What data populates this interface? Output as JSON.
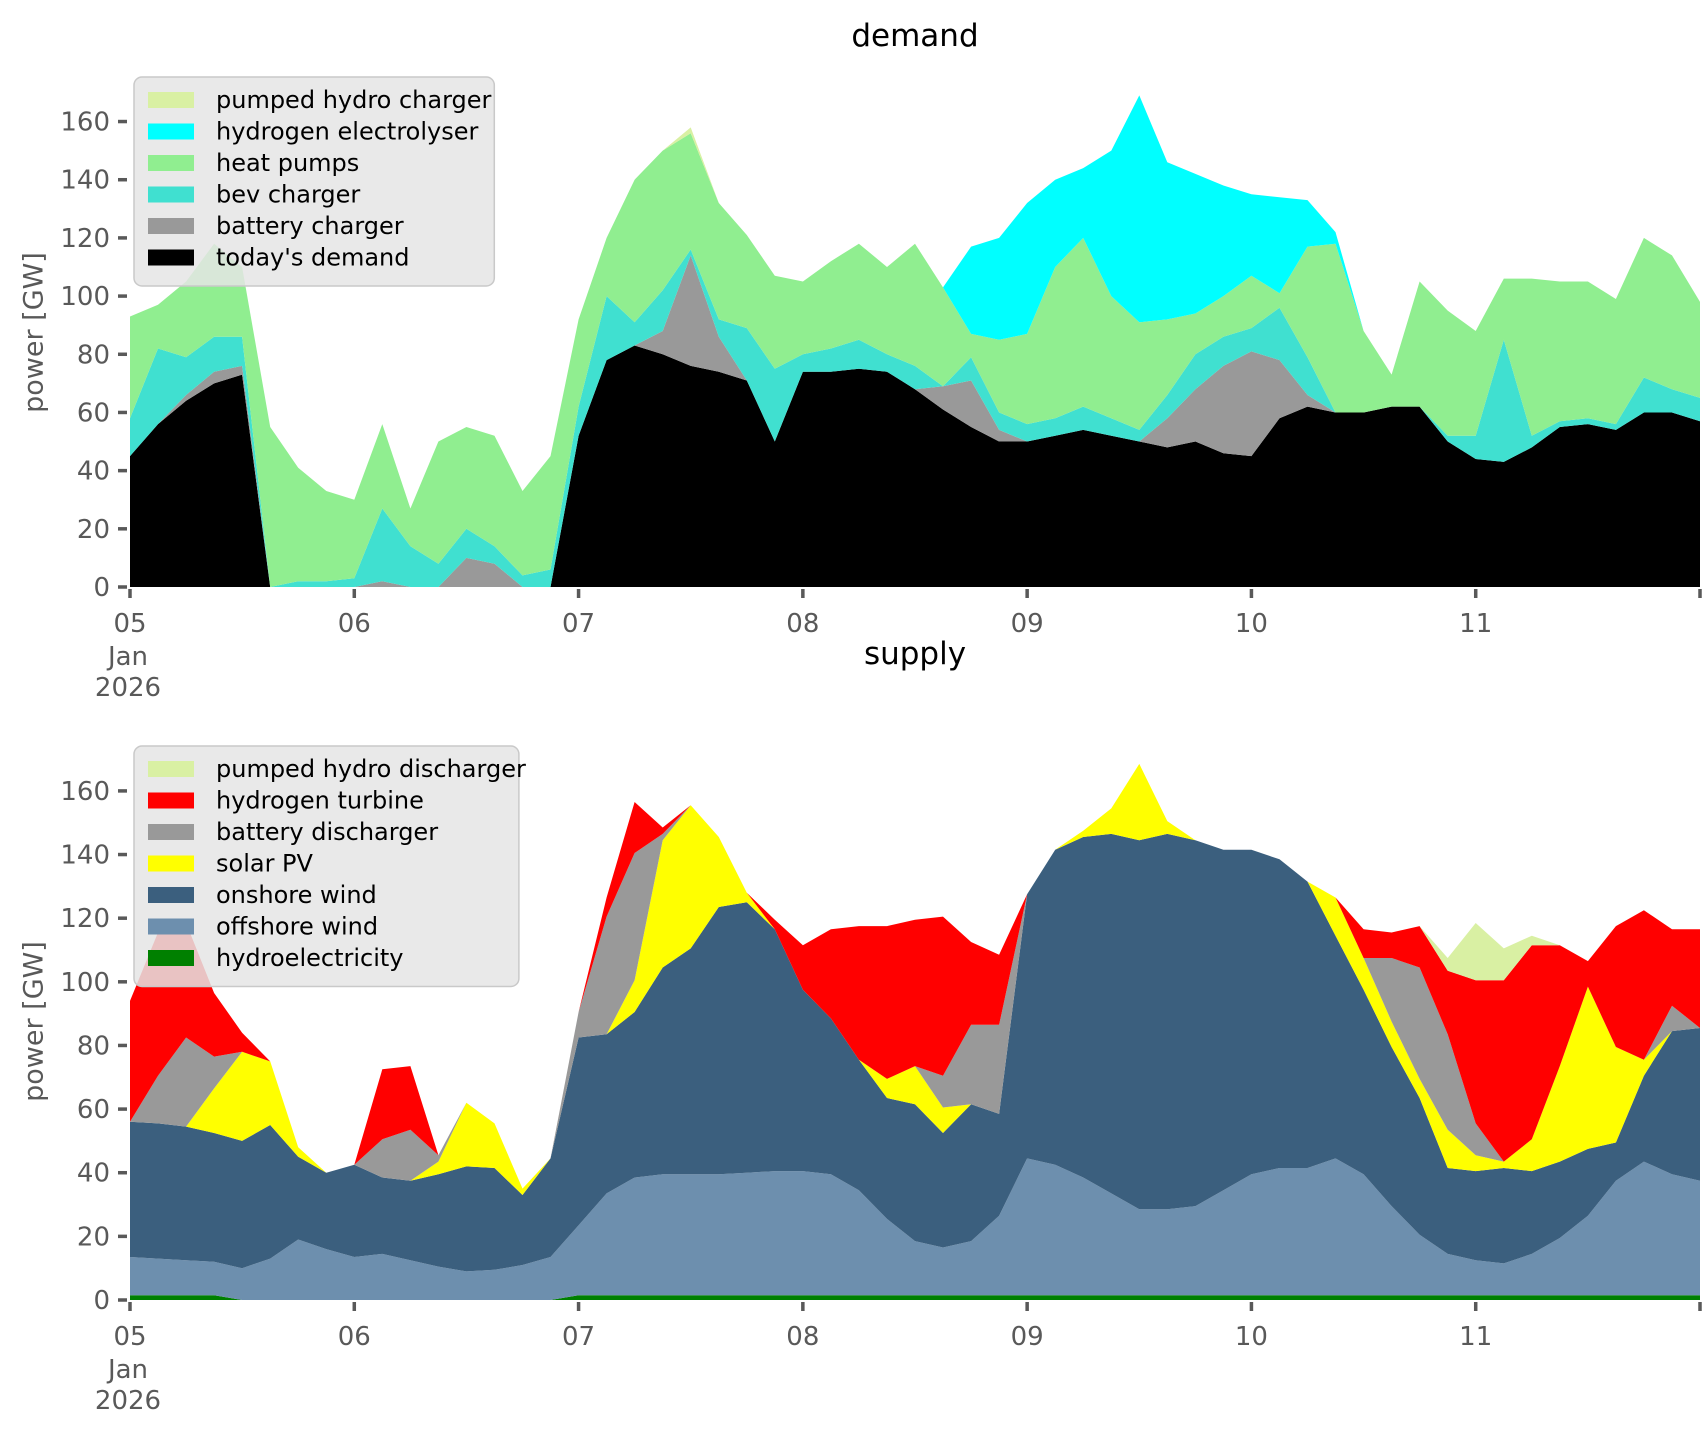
{
  "figure": {
    "background": "#ffffff",
    "tick_color": "#595959",
    "title_color": "#000000"
  },
  "chart_data": [
    {
      "id": "demand",
      "type": "area",
      "stacked": true,
      "title": "demand",
      "ylabel": "power [GW]",
      "ylim": [
        0,
        176
      ],
      "grid": false,
      "legend_position": "upper-left",
      "x_start_day": 0,
      "x_step_days": 0.125,
      "n_points": 57,
      "xtick_labels": [
        "05",
        "06",
        "07",
        "08",
        "09",
        "10",
        "11"
      ],
      "xtick_sublabels": [
        "Jan",
        "2026"
      ],
      "ytick_labels": [
        "0",
        "20",
        "40",
        "60",
        "80",
        "100",
        "120",
        "140",
        "160"
      ],
      "ytick_values": [
        0,
        20,
        40,
        60,
        80,
        100,
        120,
        140,
        160
      ],
      "legend": [
        {
          "label": "pumped hydro charger",
          "color": "#d9f0a3"
        },
        {
          "label": "hydrogen electrolyser",
          "color": "#00ffff"
        },
        {
          "label": "heat pumps",
          "color": "#90ee90"
        },
        {
          "label": "bev charger",
          "color": "#40e0d0"
        },
        {
          "label": "battery charger",
          "color": "#999999"
        },
        {
          "label": "today's demand",
          "color": "#000000"
        }
      ],
      "series": [
        {
          "name": "today's demand",
          "color": "#000000",
          "values": [
            45,
            56,
            64,
            70,
            73,
            0,
            0,
            0,
            0,
            0,
            0,
            0,
            0,
            0,
            0,
            0,
            52,
            78,
            83,
            80,
            76,
            74,
            71,
            50,
            74,
            74,
            75,
            74,
            68,
            61,
            55,
            50,
            50,
            52,
            54,
            52,
            50,
            48,
            50,
            46,
            45,
            58,
            62,
            60,
            60,
            62,
            62,
            50,
            44,
            43,
            48,
            55,
            56,
            54,
            60,
            60,
            57
          ]
        },
        {
          "name": "battery charger",
          "color": "#999999",
          "values": [
            0,
            0,
            2,
            4,
            3,
            0,
            0,
            0,
            0,
            2,
            0,
            0,
            10,
            8,
            0,
            0,
            0,
            0,
            0,
            8,
            38,
            12,
            0,
            0,
            0,
            0,
            0,
            0,
            0,
            8,
            16,
            4,
            0,
            0,
            0,
            0,
            0,
            10,
            18,
            30,
            36,
            20,
            4,
            0,
            0,
            0,
            0,
            0,
            0,
            0,
            0,
            0,
            0,
            0,
            0,
            0,
            0
          ]
        },
        {
          "name": "bev charger",
          "color": "#40e0d0",
          "values": [
            13,
            26,
            13,
            12,
            10,
            0,
            2,
            2,
            3,
            25,
            14,
            8,
            10,
            6,
            4,
            6,
            10,
            22,
            8,
            14,
            2,
            6,
            18,
            25,
            6,
            8,
            10,
            6,
            8,
            0,
            8,
            6,
            6,
            6,
            8,
            6,
            4,
            8,
            12,
            10,
            8,
            18,
            13,
            0,
            0,
            0,
            0,
            2,
            8,
            42,
            4,
            2,
            2,
            2,
            12,
            8,
            8
          ]
        },
        {
          "name": "heat pumps",
          "color": "#90ee90",
          "values": [
            35,
            15,
            26,
            32,
            24,
            55,
            39,
            31,
            27,
            29,
            13,
            42,
            35,
            38,
            29,
            39,
            30,
            20,
            49,
            48,
            40,
            40,
            32,
            32,
            25,
            30,
            33,
            30,
            42,
            34,
            8,
            25,
            31,
            52,
            58,
            42,
            37,
            26,
            14,
            14,
            18,
            5,
            38,
            58,
            28,
            11,
            43,
            43,
            36,
            21,
            54,
            48,
            47,
            43,
            48,
            46,
            33
          ]
        },
        {
          "name": "hydrogen electrolyser",
          "color": "#00ffff",
          "values": [
            0,
            0,
            0,
            0,
            0,
            0,
            0,
            0,
            0,
            0,
            0,
            0,
            0,
            0,
            0,
            0,
            0,
            0,
            0,
            0,
            0,
            0,
            0,
            0,
            0,
            0,
            0,
            0,
            0,
            0,
            30,
            35,
            45,
            30,
            24,
            50,
            78,
            54,
            48,
            38,
            28,
            33,
            16,
            4,
            0,
            0,
            0,
            0,
            0,
            0,
            0,
            0,
            0,
            0,
            0,
            0,
            0
          ]
        },
        {
          "name": "pumped hydro charger",
          "color": "#d9f0a3",
          "values": [
            0,
            0,
            0,
            0,
            0,
            0,
            0,
            0,
            0,
            0,
            0,
            0,
            0,
            0,
            0,
            0,
            0,
            0,
            0,
            0,
            2,
            0,
            0,
            0,
            0,
            0,
            0,
            0,
            0,
            0,
            0,
            0,
            0,
            0,
            0,
            0,
            0,
            0,
            0,
            0,
            0,
            0,
            0,
            0,
            0,
            0,
            0,
            0,
            0,
            0,
            0,
            0,
            0,
            0,
            0,
            0,
            0
          ]
        }
      ]
    },
    {
      "id": "supply",
      "type": "area",
      "stacked": true,
      "title": "supply",
      "ylabel": "power [GW]",
      "ylim": [
        0,
        176
      ],
      "grid": false,
      "legend_position": "upper-left",
      "x_start_day": 0,
      "x_step_days": 0.125,
      "n_points": 57,
      "xtick_labels": [
        "05",
        "06",
        "07",
        "08",
        "09",
        "10",
        "11"
      ],
      "xtick_sublabels": [
        "Jan",
        "2026"
      ],
      "ytick_labels": [
        "0",
        "20",
        "40",
        "60",
        "80",
        "100",
        "120",
        "140",
        "160"
      ],
      "ytick_values": [
        0,
        20,
        40,
        60,
        80,
        100,
        120,
        140,
        160
      ],
      "legend": [
        {
          "label": "pumped hydro discharger",
          "color": "#d9f0a3"
        },
        {
          "label": "hydrogen turbine",
          "color": "#ff0000"
        },
        {
          "label": "battery discharger",
          "color": "#999999"
        },
        {
          "label": "solar PV",
          "color": "#ffff00"
        },
        {
          "label": "onshore wind",
          "color": "#3b5f7e"
        },
        {
          "label": "offshore wind",
          "color": "#6d8fae"
        },
        {
          "label": "hydroelectricity",
          "color": "#008000"
        }
      ],
      "series": [
        {
          "name": "hydroelectricity",
          "color": "#008000",
          "values": [
            1.5,
            1.5,
            1.5,
            1.5,
            0,
            0,
            0,
            0,
            0,
            0,
            0,
            0,
            0,
            0,
            0,
            0,
            1.5,
            1.5,
            1.5,
            1.5,
            1.5,
            1.5,
            1.5,
            1.5,
            1.5,
            1.5,
            1.5,
            1.5,
            1.5,
            1.5,
            1.5,
            1.5,
            1.5,
            1.5,
            1.5,
            1.5,
            1.5,
            1.5,
            1.5,
            1.5,
            1.5,
            1.5,
            1.5,
            1.5,
            1.5,
            1.5,
            1.5,
            1.5,
            1.5,
            1.5,
            1.5,
            1.5,
            1.5,
            1.5,
            1.5,
            1.5,
            1.5
          ]
        },
        {
          "name": "offshore wind",
          "color": "#6d8fae",
          "values": [
            12,
            11.5,
            11,
            10.5,
            10,
            13,
            19,
            16,
            13.5,
            14.5,
            12.5,
            10.5,
            9,
            9.5,
            11,
            13.5,
            22,
            32,
            37,
            38,
            38,
            38,
            38.5,
            39,
            39,
            38,
            33,
            24,
            17,
            15,
            17,
            25,
            43,
            41,
            37,
            32,
            27,
            27,
            28,
            33,
            38,
            40,
            40,
            43,
            38,
            28,
            19,
            13,
            11,
            10,
            13,
            18,
            25,
            36,
            42,
            38,
            36
          ]
        },
        {
          "name": "onshore wind",
          "color": "#3b5f7e",
          "values": [
            42.5,
            42.5,
            42,
            40.5,
            40,
            42,
            26,
            24,
            29,
            24,
            25,
            29,
            33,
            32,
            22,
            31,
            59,
            50,
            52,
            65,
            71,
            84,
            85,
            76,
            57,
            49,
            41,
            38,
            43,
            36,
            43,
            32,
            83,
            99,
            107,
            113,
            116,
            118,
            115,
            107,
            102,
            97,
            90,
            70,
            58,
            50,
            43,
            27,
            28,
            30,
            26,
            24,
            21,
            12,
            27,
            45,
            48
          ]
        },
        {
          "name": "solar PV",
          "color": "#ffff00",
          "values": [
            0,
            0,
            0,
            14,
            28,
            20,
            3,
            0,
            0,
            0,
            0,
            4,
            20,
            14,
            2,
            0,
            0,
            0,
            10,
            40,
            45,
            22,
            3,
            0,
            0,
            0,
            0,
            6,
            12,
            8,
            0,
            0,
            0,
            0,
            2,
            8,
            24,
            4,
            0,
            0,
            0,
            0,
            0,
            12,
            10,
            8,
            6,
            12,
            5,
            2,
            10,
            30,
            51,
            30,
            5,
            0,
            0
          ]
        },
        {
          "name": "battery discharger",
          "color": "#999999",
          "values": [
            0,
            15,
            28,
            10,
            0,
            0,
            0,
            0,
            0,
            12,
            16,
            2,
            0,
            0,
            0,
            0,
            8,
            37,
            40,
            2,
            0,
            0,
            0,
            0,
            0,
            0,
            0,
            0,
            0,
            10,
            25,
            28,
            0,
            0,
            0,
            0,
            0,
            0,
            0,
            0,
            0,
            0,
            0,
            0,
            0,
            20,
            35,
            30,
            10,
            0,
            0,
            0,
            0,
            0,
            0,
            8,
            0
          ]
        },
        {
          "name": "hydrogen turbine",
          "color": "#ff0000",
          "values": [
            38,
            45,
            36,
            20,
            6,
            0,
            0,
            0,
            0,
            22,
            20,
            0,
            0,
            0,
            0,
            0,
            0,
            6,
            16,
            2,
            0,
            0,
            0,
            3,
            14,
            28,
            42,
            48,
            46,
            50,
            26,
            22,
            0,
            0,
            0,
            0,
            0,
            0,
            0,
            0,
            0,
            0,
            0,
            0,
            9,
            8,
            13,
            20,
            45,
            57,
            61,
            38,
            8,
            38,
            47,
            24,
            31
          ]
        },
        {
          "name": "pumped hydro discharger",
          "color": "#d9f0a3",
          "values": [
            0,
            0,
            0,
            0,
            0,
            0,
            0,
            0,
            0,
            0,
            0,
            0,
            0,
            0,
            0,
            0,
            0,
            0,
            0,
            0,
            0,
            0,
            0,
            0,
            0,
            0,
            0,
            0,
            0,
            0,
            0,
            0,
            0,
            0,
            0,
            0,
            0,
            0,
            0,
            0,
            0,
            0,
            0,
            0,
            0,
            0,
            0,
            4,
            18,
            10,
            3,
            0,
            0,
            0,
            0,
            0,
            0
          ]
        }
      ]
    }
  ]
}
